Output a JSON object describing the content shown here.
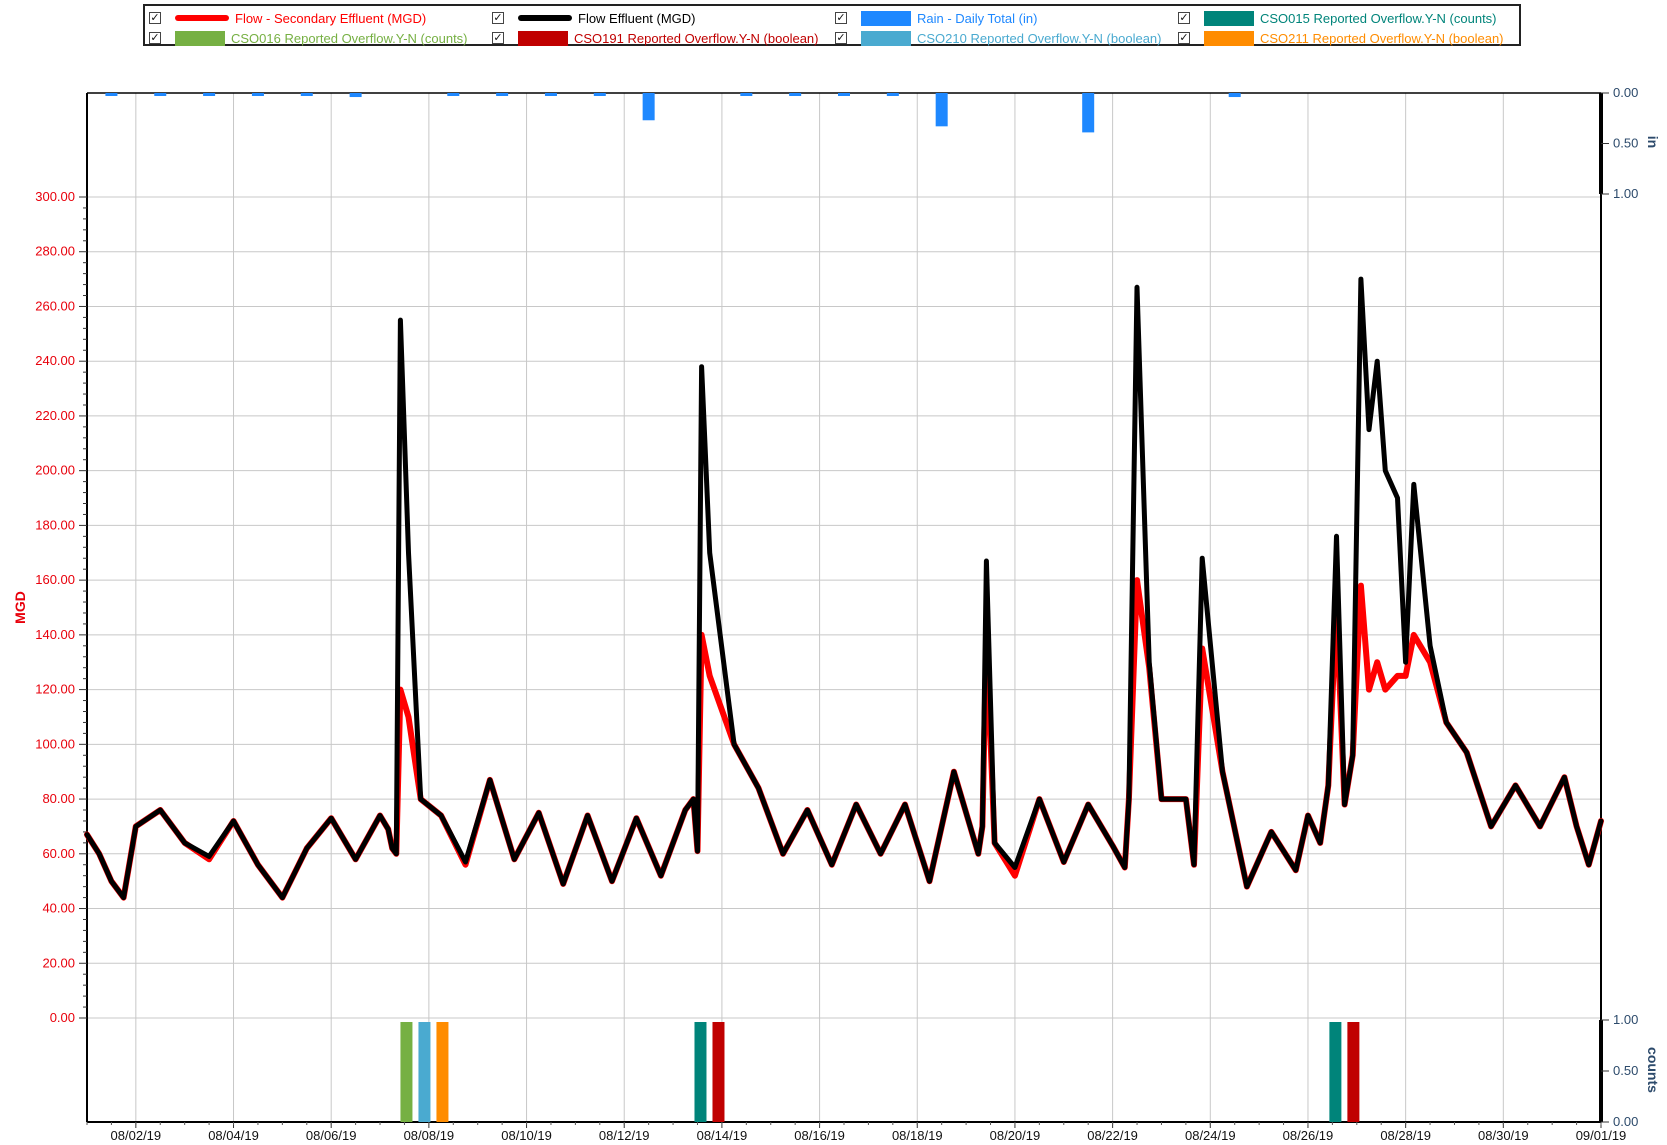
{
  "legend": {
    "items": [
      {
        "label": "Flow - Secondary Effluent (MGD)",
        "color": "#ff0000",
        "kind": "line",
        "check": "✓"
      },
      {
        "label": "Flow Effluent (MGD)",
        "color": "#000000",
        "kind": "line",
        "check": "✓"
      },
      {
        "label": "Rain - Daily Total (in)",
        "color": "#1e88ff",
        "kind": "bar",
        "check": "✓"
      },
      {
        "label": "CSO015 Reported Overflow.Y-N (counts)",
        "color": "#00847a",
        "kind": "bar",
        "check": "✓"
      },
      {
        "label": "CSO016 Reported Overflow.Y-N (counts)",
        "color": "#76b043",
        "kind": "bar",
        "check": "✓"
      },
      {
        "label": "CSO191 Reported Overflow.Y-N (boolean)",
        "color": "#c00000",
        "kind": "bar",
        "check": "✓"
      },
      {
        "label": "CSO210 Reported Overflow.Y-N (boolean)",
        "color": "#4aaad0",
        "kind": "bar",
        "check": "✓"
      },
      {
        "label": "CSO211 Reported Overflow.Y-N (boolean)",
        "color": "#ff8c00",
        "kind": "bar",
        "check": "✓"
      }
    ]
  },
  "chart_data": [
    {
      "type": "line",
      "ylabel": "MGD",
      "ylim": [
        0,
        300
      ],
      "yticks": [
        "0.00",
        "20.00",
        "40.00",
        "60.00",
        "80.00",
        "100.00",
        "120.00",
        "140.00",
        "160.00",
        "180.00",
        "200.00",
        "220.00",
        "240.00",
        "260.00",
        "280.00",
        "300.00"
      ],
      "xlim": [
        "08/01/19 00:00",
        "09/01/19 00:00"
      ],
      "xticks": [
        "08/02/19",
        "08/04/19",
        "08/06/19",
        "08/08/19",
        "08/10/19",
        "08/12/19",
        "08/14/19",
        "08/16/19",
        "08/18/19",
        "08/20/19",
        "08/22/19",
        "08/24/19",
        "08/26/19",
        "08/28/19",
        "08/30/19",
        "09/01/19"
      ],
      "grid": true,
      "series": [
        {
          "name": "Flow Effluent (MGD)",
          "color": "#000000",
          "x": [
            "08/01/19 00:00",
            "08/01/19 06:00",
            "08/01/19 12:00",
            "08/01/19 18:00",
            "08/02/19 00:00",
            "08/02/19 12:00",
            "08/03/19 00:00",
            "08/03/19 12:00",
            "08/04/19 00:00",
            "08/04/19 12:00",
            "08/05/19 00:00",
            "08/05/19 12:00",
            "08/06/19 00:00",
            "08/06/19 12:00",
            "08/07/19 00:00",
            "08/07/19 04:00",
            "08/07/19 06:00",
            "08/07/19 08:00",
            "08/07/19 10:00",
            "08/07/19 14:00",
            "08/07/19 20:00",
            "08/08/19 06:00",
            "08/08/19 18:00",
            "08/09/19 06:00",
            "08/09/19 18:00",
            "08/10/19 06:00",
            "08/10/19 18:00",
            "08/11/19 06:00",
            "08/11/19 18:00",
            "08/12/19 06:00",
            "08/12/19 18:00",
            "08/13/19 06:00",
            "08/13/19 10:00",
            "08/13/19 12:00",
            "08/13/19 14:00",
            "08/13/19 18:00",
            "08/14/19 06:00",
            "08/14/19 18:00",
            "08/15/19 06:00",
            "08/15/19 18:00",
            "08/16/19 06:00",
            "08/16/19 18:00",
            "08/17/19 06:00",
            "08/17/19 18:00",
            "08/18/19 06:00",
            "08/18/19 18:00",
            "08/19/19 06:00",
            "08/19/19 08:00",
            "08/19/19 10:00",
            "08/19/19 14:00",
            "08/20/19 00:00",
            "08/20/19 12:00",
            "08/21/19 00:00",
            "08/21/19 12:00",
            "08/22/19 00:00",
            "08/22/19 06:00",
            "08/22/19 08:00",
            "08/22/19 12:00",
            "08/22/19 18:00",
            "08/23/19 00:00",
            "08/23/19 12:00",
            "08/23/19 16:00",
            "08/23/19 20:00",
            "08/24/19 06:00",
            "08/24/19 18:00",
            "08/25/19 06:00",
            "08/25/19 18:00",
            "08/26/19 00:00",
            "08/26/19 06:00",
            "08/26/19 10:00",
            "08/26/19 14:00",
            "08/26/19 18:00",
            "08/26/19 22:00",
            "08/27/19 02:00",
            "08/27/19 06:00",
            "08/27/19 10:00",
            "08/27/19 14:00",
            "08/27/19 20:00",
            "08/28/19 00:00",
            "08/28/19 04:00",
            "08/28/19 12:00",
            "08/28/19 20:00",
            "08/29/19 06:00",
            "08/29/19 18:00",
            "08/30/19 06:00",
            "08/30/19 18:00",
            "08/31/19 06:00",
            "08/31/19 12:00",
            "08/31/19 18:00",
            "09/01/19 00:00"
          ],
          "values": [
            67,
            60,
            50,
            44,
            70,
            76,
            64,
            59,
            72,
            56,
            44,
            62,
            73,
            58,
            74,
            69,
            62,
            60,
            255,
            170,
            80,
            74,
            57,
            87,
            58,
            75,
            49,
            74,
            50,
            73,
            52,
            76,
            80,
            61,
            238,
            170,
            100,
            84,
            60,
            76,
            56,
            78,
            60,
            78,
            50,
            90,
            60,
            70,
            167,
            64,
            55,
            80,
            57,
            78,
            63,
            55,
            80,
            267,
            130,
            80,
            80,
            56,
            168,
            90,
            48,
            68,
            54,
            74,
            64,
            85,
            176,
            78,
            96,
            270,
            215,
            240,
            200,
            190,
            130,
            195,
            136,
            108,
            97,
            70,
            85,
            70,
            88,
            70,
            56,
            72
          ]
        },
        {
          "name": "Flow - Secondary Effluent (MGD)",
          "color": "#ff0000",
          "x": [
            "08/01/19 00:00",
            "08/01/19 06:00",
            "08/01/19 12:00",
            "08/01/19 18:00",
            "08/02/19 00:00",
            "08/02/19 12:00",
            "08/03/19 00:00",
            "08/03/19 12:00",
            "08/04/19 00:00",
            "08/04/19 12:00",
            "08/05/19 00:00",
            "08/05/19 12:00",
            "08/06/19 00:00",
            "08/06/19 12:00",
            "08/07/19 00:00",
            "08/07/19 04:00",
            "08/07/19 06:00",
            "08/07/19 08:00",
            "08/07/19 10:00",
            "08/07/19 14:00",
            "08/07/19 20:00",
            "08/08/19 06:00",
            "08/08/19 18:00",
            "08/09/19 06:00",
            "08/09/19 18:00",
            "08/10/19 06:00",
            "08/10/19 18:00",
            "08/11/19 06:00",
            "08/11/19 18:00",
            "08/12/19 06:00",
            "08/12/19 18:00",
            "08/13/19 06:00",
            "08/13/19 10:00",
            "08/13/19 12:00",
            "08/13/19 14:00",
            "08/13/19 18:00",
            "08/14/19 06:00",
            "08/14/19 18:00",
            "08/15/19 06:00",
            "08/15/19 18:00",
            "08/16/19 06:00",
            "08/16/19 18:00",
            "08/17/19 06:00",
            "08/17/19 18:00",
            "08/18/19 06:00",
            "08/18/19 18:00",
            "08/19/19 06:00",
            "08/19/19 08:00",
            "08/19/19 10:00",
            "08/19/19 14:00",
            "08/20/19 00:00",
            "08/20/19 12:00",
            "08/21/19 00:00",
            "08/21/19 12:00",
            "08/22/19 00:00",
            "08/22/19 06:00",
            "08/22/19 08:00",
            "08/22/19 12:00",
            "08/22/19 18:00",
            "08/23/19 00:00",
            "08/23/19 12:00",
            "08/23/19 16:00",
            "08/23/19 20:00",
            "08/24/19 06:00",
            "08/24/19 18:00",
            "08/25/19 06:00",
            "08/25/19 18:00",
            "08/26/19 00:00",
            "08/26/19 06:00",
            "08/26/19 10:00",
            "08/26/19 14:00",
            "08/26/19 18:00",
            "08/26/19 22:00",
            "08/27/19 02:00",
            "08/27/19 06:00",
            "08/27/19 10:00",
            "08/27/19 14:00",
            "08/27/19 20:00",
            "08/28/19 00:00",
            "08/28/19 04:00",
            "08/28/19 12:00",
            "08/28/19 20:00",
            "08/29/19 06:00",
            "08/29/19 18:00",
            "08/30/19 06:00",
            "08/30/19 18:00",
            "08/31/19 06:00",
            "08/31/19 12:00",
            "08/31/19 18:00",
            "09/01/19 00:00"
          ],
          "values": [
            67,
            60,
            50,
            44,
            70,
            76,
            64,
            58,
            72,
            56,
            44,
            62,
            73,
            58,
            74,
            69,
            62,
            60,
            120,
            110,
            80,
            74,
            56,
            87,
            58,
            75,
            49,
            74,
            50,
            73,
            52,
            76,
            80,
            61,
            140,
            125,
            100,
            84,
            60,
            76,
            56,
            78,
            60,
            78,
            50,
            90,
            60,
            70,
            140,
            64,
            52,
            80,
            57,
            78,
            63,
            55,
            80,
            160,
            128,
            80,
            80,
            56,
            135,
            90,
            48,
            68,
            54,
            74,
            64,
            85,
            150,
            78,
            96,
            158,
            120,
            130,
            120,
            125,
            125,
            140,
            130,
            108,
            97,
            70,
            85,
            70,
            88,
            70,
            56,
            72
          ]
        }
      ]
    },
    {
      "type": "bar",
      "ylabel": "in",
      "ylim": [
        0,
        1
      ],
      "yticks": [
        "0.00",
        "0.50",
        "1.00"
      ],
      "inverted": true,
      "series": [
        {
          "name": "Rain - Daily Total (in)",
          "color": "#1e88ff",
          "x": [
            "08/01/19",
            "08/02/19",
            "08/03/19",
            "08/04/19",
            "08/05/19",
            "08/06/19",
            "08/07/19",
            "08/08/19",
            "08/09/19",
            "08/10/19",
            "08/11/19",
            "08/12/19",
            "08/13/19",
            "08/14/19",
            "08/15/19",
            "08/16/19",
            "08/17/19",
            "08/18/19",
            "08/19/19",
            "08/20/19",
            "08/21/19",
            "08/22/19",
            "08/23/19",
            "08/24/19",
            "08/25/19",
            "08/26/19",
            "08/27/19",
            "08/28/19",
            "08/29/19",
            "08/30/19",
            "08/31/19"
          ],
          "values": [
            0.01,
            0.01,
            0.01,
            0.01,
            0.01,
            0.04,
            0,
            0.01,
            0.01,
            0.01,
            0.01,
            0.27,
            0,
            0.01,
            0.01,
            0.01,
            0.01,
            0.33,
            0,
            0,
            0.39,
            0,
            0,
            0.04,
            0,
            0,
            0,
            0,
            0,
            0,
            0
          ]
        }
      ]
    },
    {
      "type": "bar",
      "ylabel": "counts",
      "ylim": [
        0,
        1
      ],
      "yticks": [
        "0.00",
        "0.50",
        "1.00"
      ],
      "series": [
        {
          "name": "CSO015 Reported Overflow.Y-N (counts)",
          "color": "#00847a",
          "x": [
            "08/13/19",
            "08/26/19"
          ],
          "values": [
            1,
            1
          ]
        },
        {
          "name": "CSO016 Reported Overflow.Y-N (counts)",
          "color": "#76b043",
          "x": [
            "08/07/19"
          ],
          "values": [
            1
          ]
        },
        {
          "name": "CSO191 Reported Overflow.Y-N (boolean)",
          "color": "#c00000",
          "x": [
            "08/13/19",
            "08/26/19"
          ],
          "values": [
            1,
            1
          ]
        },
        {
          "name": "CSO210 Reported Overflow.Y-N (boolean)",
          "color": "#4aaad0",
          "x": [
            "08/07/19"
          ],
          "values": [
            1
          ]
        },
        {
          "name": "CSO211 Reported Overflow.Y-N (boolean)",
          "color": "#ff8c00",
          "x": [
            "08/07/19"
          ],
          "values": [
            1
          ]
        }
      ]
    }
  ]
}
